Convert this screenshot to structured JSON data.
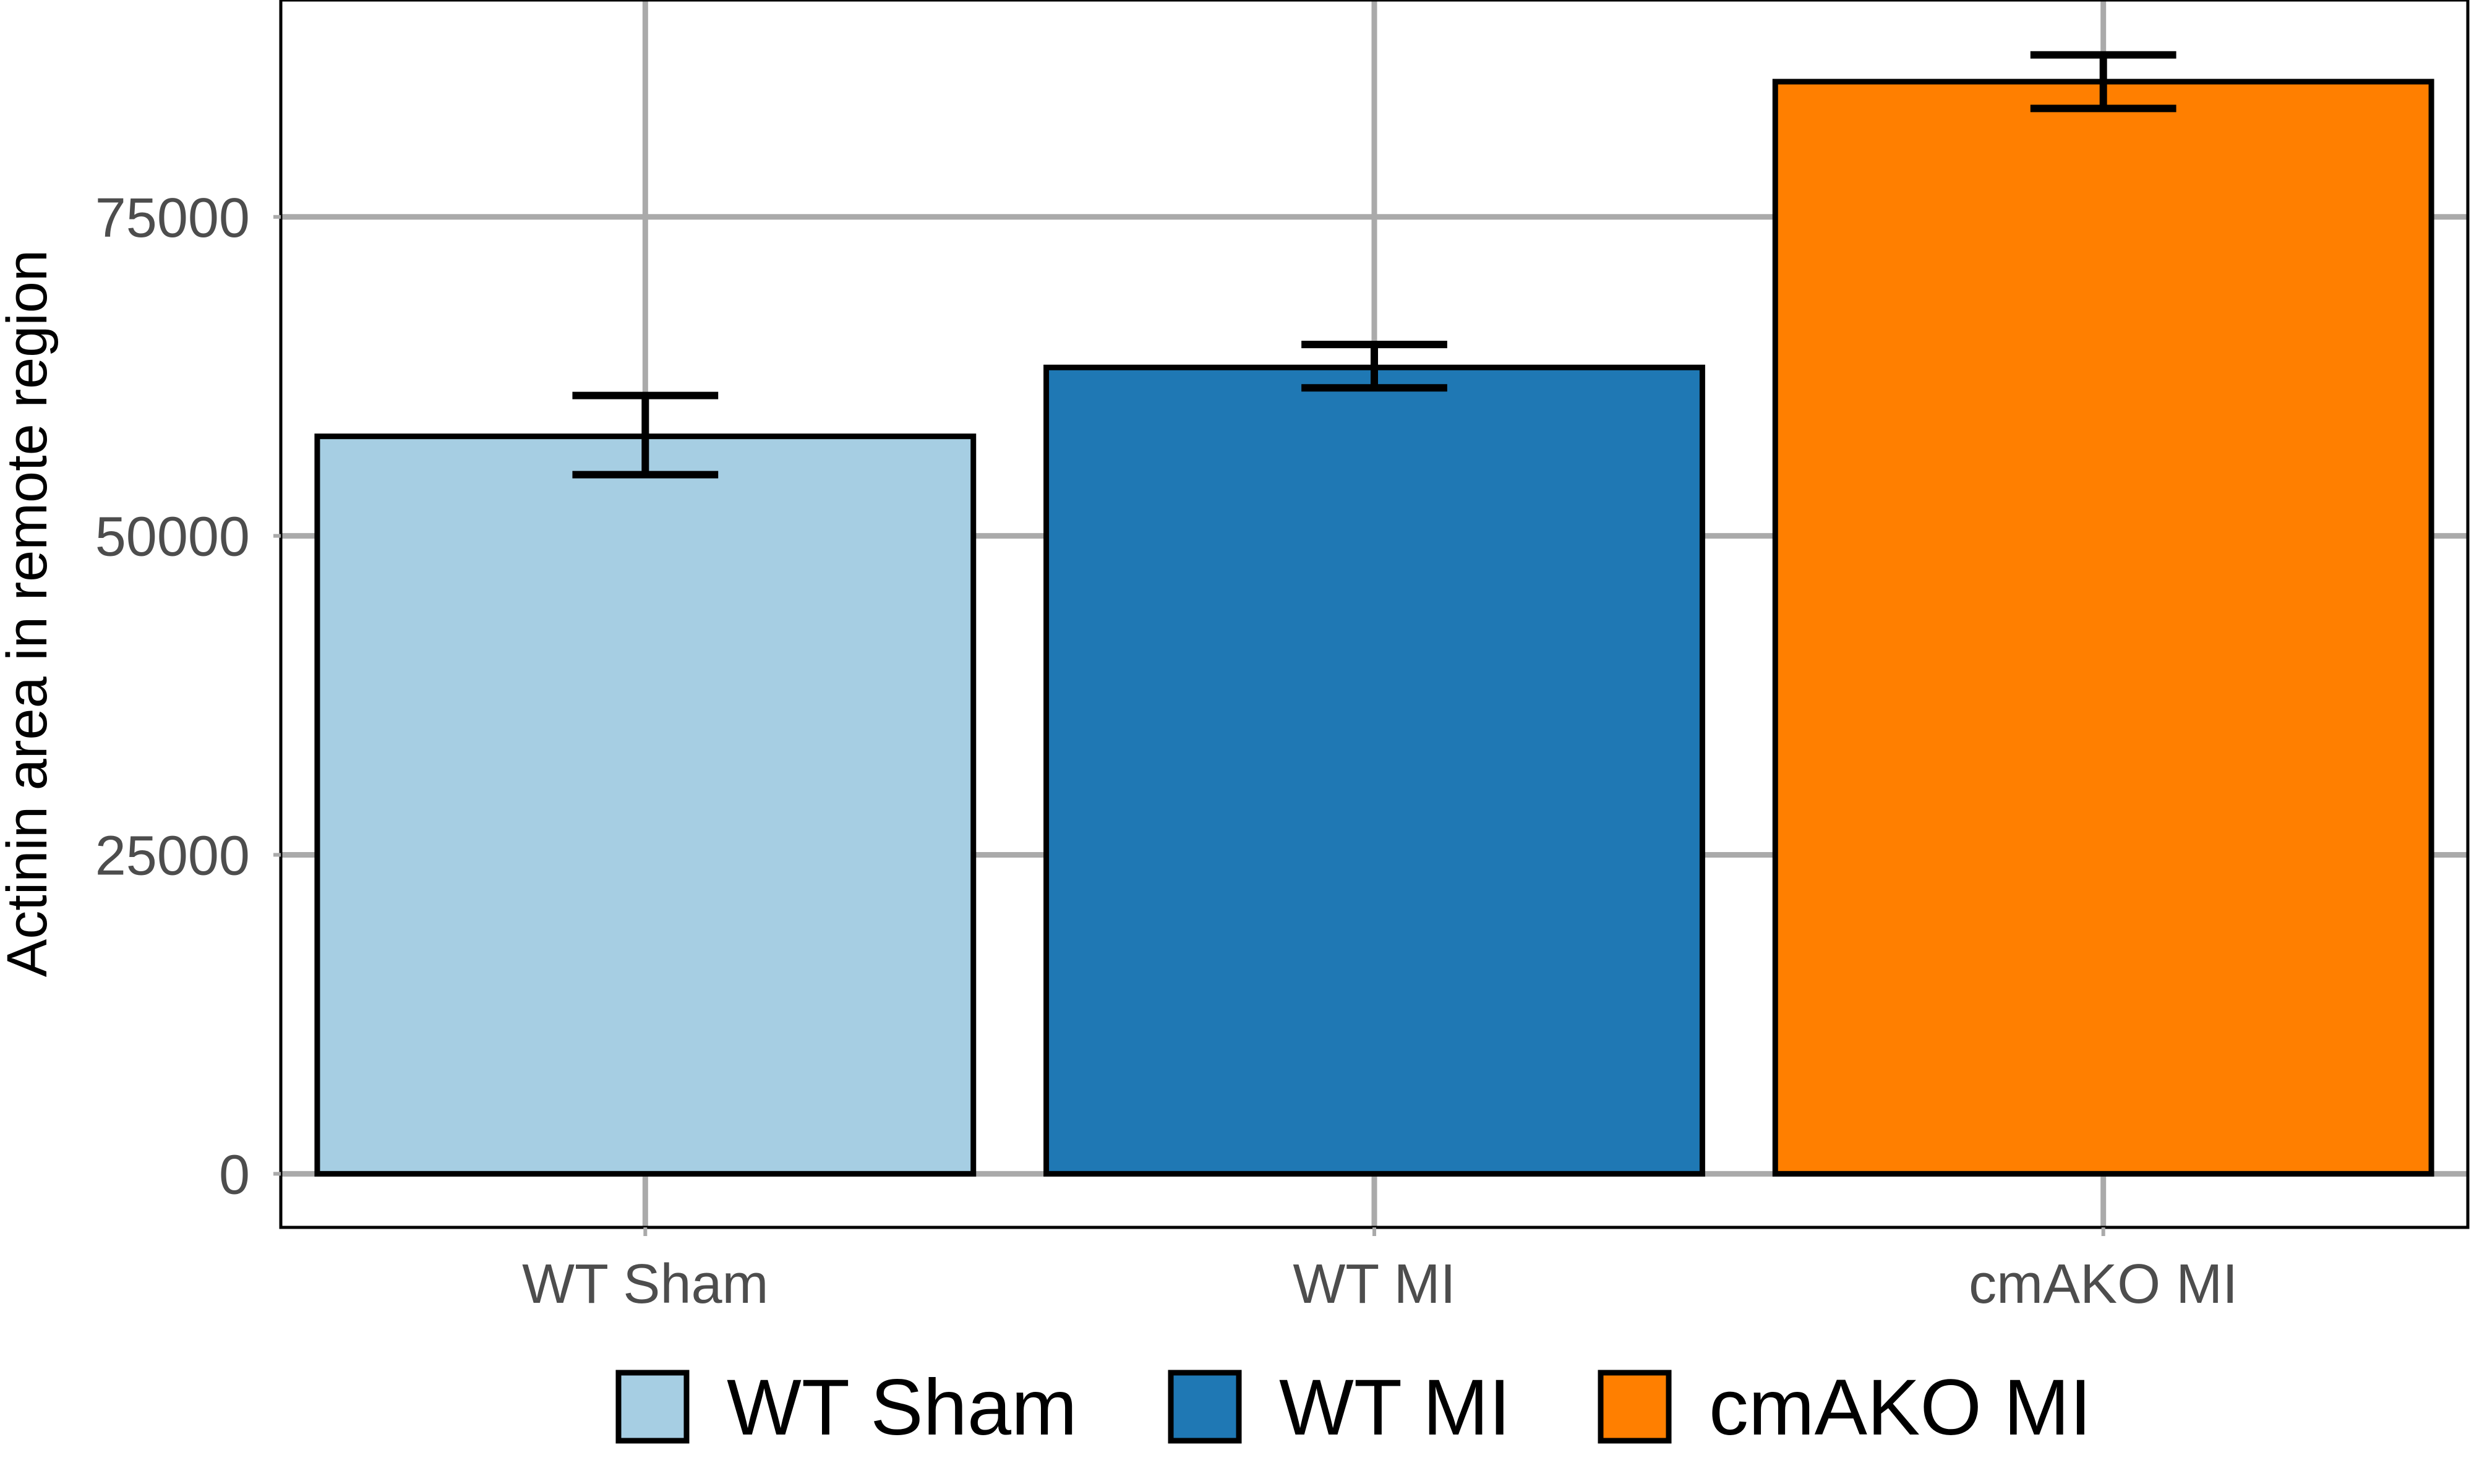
{
  "chart_data": {
    "type": "bar",
    "title": "",
    "xlabel": "",
    "ylabel": "Actinin area in remote region",
    "categories": [
      "WT Sham",
      "WT MI",
      "cmAKO MI"
    ],
    "values": [
      57800,
      63200,
      85600
    ],
    "error_bars": [
      {
        "low": 54800,
        "high": 61000
      },
      {
        "low": 61600,
        "high": 65000
      },
      {
        "low": 83500,
        "high": 87700
      }
    ],
    "colors": [
      "#a6cee3",
      "#1f78b4",
      "#ff7f00"
    ],
    "ylim": [
      -4200,
      92000
    ],
    "y_ticks": [
      0,
      25000,
      50000,
      75000
    ],
    "y_tick_labels": [
      "0",
      "25000",
      "50000",
      "75000"
    ],
    "grid": true,
    "legend": {
      "position": "bottom",
      "entries": [
        "WT Sham",
        "WT MI",
        "cmAKO MI"
      ]
    }
  }
}
